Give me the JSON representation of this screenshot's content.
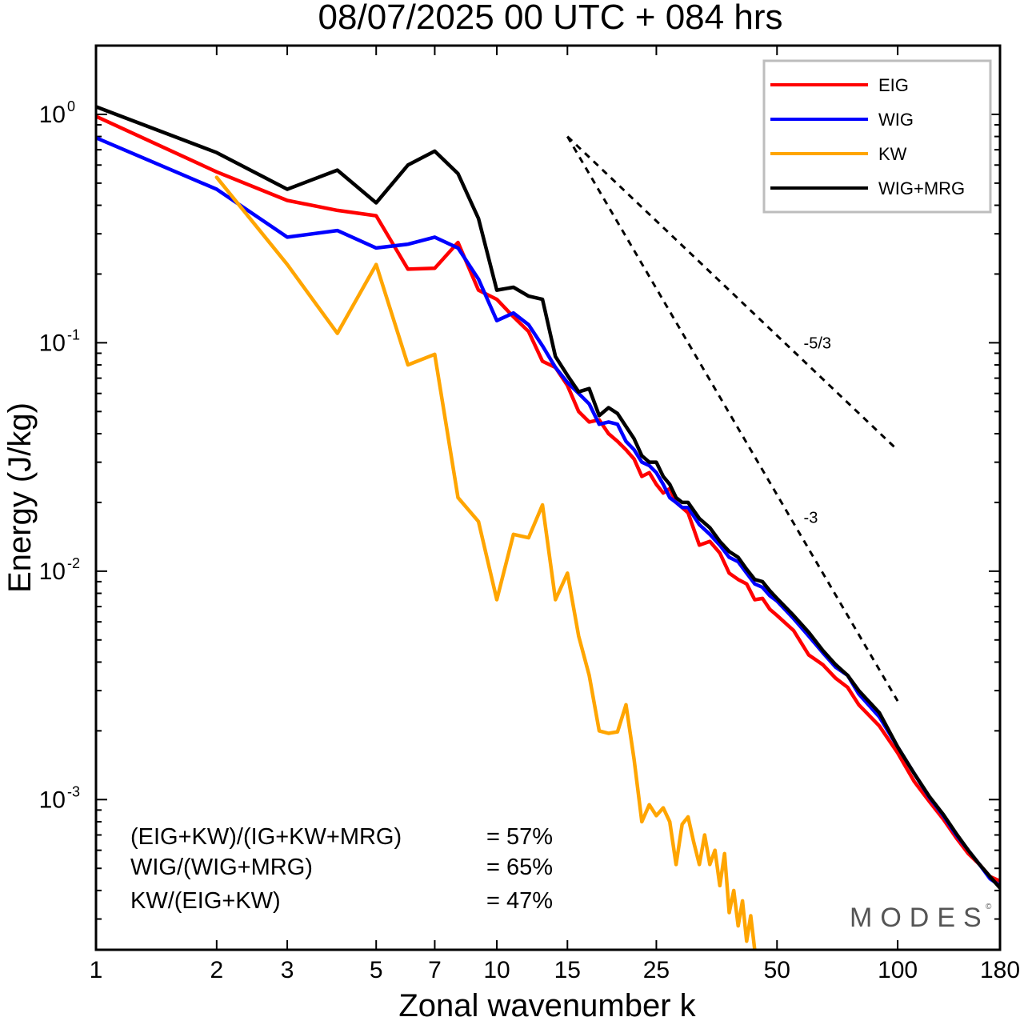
{
  "title": "08/07/2025  00 UTC  + 084 hrs",
  "logo": "MODES",
  "logo_mark": "©",
  "stats": [
    {
      "label": "(EIG+KW)/(IG+KW+MRG)",
      "value": "= 57%"
    },
    {
      "label": "WIG/(WIG+MRG)",
      "value": "= 65%"
    },
    {
      "label": "KW/(EIG+KW)",
      "value": "= 47%"
    }
  ],
  "chart_data": {
    "type": "line",
    "xlabel": "Zonal wavenumber k",
    "ylabel": "Energy (J/kg)",
    "xscale": "log",
    "yscale": "log",
    "xlim": [
      1,
      180
    ],
    "ylim": [
      0.00022,
      2.0
    ],
    "xticks": [
      1,
      2,
      3,
      5,
      7,
      10,
      15,
      25,
      50,
      100,
      180
    ],
    "xtick_labels": [
      "1",
      "2",
      "3",
      "5",
      "7",
      "10",
      "15",
      "25",
      "50",
      "100",
      "180"
    ],
    "yticks": [
      {
        "value": 1,
        "base": "10",
        "exp": "0"
      },
      {
        "value": 0.1,
        "base": "10",
        "exp": "-1"
      },
      {
        "value": 0.01,
        "base": "10",
        "exp": "-2"
      },
      {
        "value": 0.001,
        "base": "10",
        "exp": "-3"
      }
    ],
    "legend_position": "top-right",
    "series": [
      {
        "name": "EIG",
        "color": "#ff0000",
        "points": [
          [
            1,
            0.98
          ],
          [
            2,
            0.56
          ],
          [
            3,
            0.42
          ],
          [
            4,
            0.38
          ],
          [
            5,
            0.36
          ],
          [
            6,
            0.21
          ],
          [
            7,
            0.212
          ],
          [
            8,
            0.275
          ],
          [
            9,
            0.17
          ],
          [
            10,
            0.155
          ],
          [
            11,
            0.13
          ],
          [
            12,
            0.112
          ],
          [
            13,
            0.083
          ],
          [
            14,
            0.078
          ],
          [
            15,
            0.065
          ],
          [
            16,
            0.05
          ],
          [
            17,
            0.045
          ],
          [
            18,
            0.046
          ],
          [
            19,
            0.04
          ],
          [
            20,
            0.037
          ],
          [
            21,
            0.034
          ],
          [
            22,
            0.031
          ],
          [
            23,
            0.026
          ],
          [
            24,
            0.027
          ],
          [
            25,
            0.024
          ],
          [
            26,
            0.022
          ],
          [
            27,
            0.023
          ],
          [
            28,
            0.02
          ],
          [
            29,
            0.019
          ],
          [
            30,
            0.018
          ],
          [
            32,
            0.013
          ],
          [
            34,
            0.0135
          ],
          [
            36,
            0.012
          ],
          [
            38,
            0.0098
          ],
          [
            40,
            0.0092
          ],
          [
            42,
            0.0088
          ],
          [
            44,
            0.0075
          ],
          [
            46,
            0.0076
          ],
          [
            48,
            0.0068
          ],
          [
            50,
            0.0064
          ],
          [
            55,
            0.0055
          ],
          [
            60,
            0.0043
          ],
          [
            65,
            0.0039
          ],
          [
            70,
            0.0034
          ],
          [
            75,
            0.0031
          ],
          [
            80,
            0.0026
          ],
          [
            90,
            0.0021
          ],
          [
            100,
            0.0016
          ],
          [
            110,
            0.0012
          ],
          [
            120,
            0.00098
          ],
          [
            130,
            0.00082
          ],
          [
            140,
            0.00068
          ],
          [
            150,
            0.00058
          ],
          [
            160,
            0.00052
          ],
          [
            170,
            0.00046
          ],
          [
            180,
            0.00044
          ]
        ]
      },
      {
        "name": "WIG",
        "color": "#0000ff",
        "points": [
          [
            1,
            0.79
          ],
          [
            2,
            0.47
          ],
          [
            3,
            0.29
          ],
          [
            4,
            0.31
          ],
          [
            5,
            0.26
          ],
          [
            6,
            0.27
          ],
          [
            7,
            0.29
          ],
          [
            8,
            0.26
          ],
          [
            9,
            0.19
          ],
          [
            10,
            0.125
          ],
          [
            11,
            0.135
          ],
          [
            12,
            0.12
          ],
          [
            13,
            0.097
          ],
          [
            14,
            0.078
          ],
          [
            15,
            0.067
          ],
          [
            16,
            0.06
          ],
          [
            17,
            0.054
          ],
          [
            18,
            0.044
          ],
          [
            19,
            0.045
          ],
          [
            20,
            0.044
          ],
          [
            21,
            0.037
          ],
          [
            22,
            0.034
          ],
          [
            23,
            0.03
          ],
          [
            24,
            0.029
          ],
          [
            25,
            0.027
          ],
          [
            26,
            0.024
          ],
          [
            27,
            0.021
          ],
          [
            28,
            0.02
          ],
          [
            29,
            0.019
          ],
          [
            30,
            0.019
          ],
          [
            32,
            0.016
          ],
          [
            34,
            0.0145
          ],
          [
            36,
            0.013
          ],
          [
            38,
            0.0115
          ],
          [
            40,
            0.011
          ],
          [
            42,
            0.0098
          ],
          [
            44,
            0.0088
          ],
          [
            46,
            0.0085
          ],
          [
            48,
            0.0078
          ],
          [
            50,
            0.0074
          ],
          [
            55,
            0.0062
          ],
          [
            60,
            0.0052
          ],
          [
            65,
            0.0044
          ],
          [
            70,
            0.0038
          ],
          [
            75,
            0.0035
          ],
          [
            80,
            0.0029
          ],
          [
            90,
            0.0023
          ],
          [
            100,
            0.0017
          ],
          [
            110,
            0.0013
          ],
          [
            120,
            0.00102
          ],
          [
            130,
            0.00085
          ],
          [
            140,
            0.0007
          ],
          [
            150,
            0.0006
          ],
          [
            160,
            0.00052
          ],
          [
            170,
            0.00045
          ],
          [
            180,
            0.00042
          ]
        ]
      },
      {
        "name": "KW",
        "color": "#ffa500",
        "points": [
          [
            2,
            0.53
          ],
          [
            3,
            0.22
          ],
          [
            4,
            0.11
          ],
          [
            5,
            0.22
          ],
          [
            6,
            0.08
          ],
          [
            7,
            0.089
          ],
          [
            8,
            0.021
          ],
          [
            9,
            0.0165
          ],
          [
            10,
            0.0075
          ],
          [
            11,
            0.0145
          ],
          [
            12,
            0.014
          ],
          [
            13,
            0.0195
          ],
          [
            14,
            0.0075
          ],
          [
            15,
            0.0098
          ],
          [
            16,
            0.0052
          ],
          [
            17,
            0.0035
          ],
          [
            18,
            0.002
          ],
          [
            19,
            0.00195
          ],
          [
            20,
            0.00198
          ],
          [
            21,
            0.0026
          ],
          [
            22,
            0.0015
          ],
          [
            23,
            0.0008
          ],
          [
            24,
            0.00095
          ],
          [
            25,
            0.00085
          ],
          [
            26,
            0.00092
          ],
          [
            27,
            0.0008
          ],
          [
            28,
            0.00052
          ],
          [
            29,
            0.00078
          ],
          [
            30,
            0.00084
          ],
          [
            31,
            0.00065
          ],
          [
            32,
            0.00052
          ],
          [
            33,
            0.0007
          ],
          [
            34,
            0.00052
          ],
          [
            35,
            0.0006
          ],
          [
            36,
            0.00042
          ],
          [
            37,
            0.00058
          ],
          [
            38,
            0.00032
          ],
          [
            39,
            0.0004
          ],
          [
            40,
            0.00028
          ],
          [
            41,
            0.00036
          ],
          [
            42,
            0.00024
          ],
          [
            43,
            0.00031
          ],
          [
            44,
            0.00022
          ]
        ]
      },
      {
        "name": "WIG+MRG",
        "color": "#000000",
        "points": [
          [
            1,
            1.08
          ],
          [
            2,
            0.68
          ],
          [
            3,
            0.47
          ],
          [
            4,
            0.57
          ],
          [
            5,
            0.41
          ],
          [
            6,
            0.6
          ],
          [
            7,
            0.69
          ],
          [
            8,
            0.55
          ],
          [
            9,
            0.35
          ],
          [
            10,
            0.17
          ],
          [
            11,
            0.175
          ],
          [
            12,
            0.16
          ],
          [
            13,
            0.155
          ],
          [
            14,
            0.087
          ],
          [
            15,
            0.072
          ],
          [
            16,
            0.061
          ],
          [
            17,
            0.063
          ],
          [
            18,
            0.048
          ],
          [
            19,
            0.052
          ],
          [
            20,
            0.049
          ],
          [
            21,
            0.043
          ],
          [
            22,
            0.038
          ],
          [
            23,
            0.032
          ],
          [
            24,
            0.03
          ],
          [
            25,
            0.03
          ],
          [
            26,
            0.026
          ],
          [
            27,
            0.024
          ],
          [
            28,
            0.021
          ],
          [
            29,
            0.02
          ],
          [
            30,
            0.02
          ],
          [
            32,
            0.017
          ],
          [
            34,
            0.0155
          ],
          [
            36,
            0.0135
          ],
          [
            38,
            0.0122
          ],
          [
            40,
            0.0115
          ],
          [
            42,
            0.0102
          ],
          [
            44,
            0.0092
          ],
          [
            46,
            0.009
          ],
          [
            48,
            0.0082
          ],
          [
            50,
            0.0076
          ],
          [
            55,
            0.0064
          ],
          [
            60,
            0.0054
          ],
          [
            65,
            0.0045
          ],
          [
            70,
            0.0039
          ],
          [
            75,
            0.0035
          ],
          [
            80,
            0.003
          ],
          [
            90,
            0.0024
          ],
          [
            100,
            0.0017
          ],
          [
            110,
            0.0013
          ],
          [
            120,
            0.00103
          ],
          [
            130,
            0.00086
          ],
          [
            140,
            0.00071
          ],
          [
            150,
            0.0006
          ],
          [
            160,
            0.00052
          ],
          [
            170,
            0.00046
          ],
          [
            180,
            0.00041
          ]
        ]
      }
    ],
    "reference_slopes": [
      {
        "label": "-5/3",
        "slope": -1.6667,
        "k_start": 15,
        "k_end": 100,
        "e_start": 0.8
      },
      {
        "label": "-3",
        "slope": -3,
        "k_start": 15,
        "k_end": 100,
        "e_start": 0.8
      }
    ]
  }
}
